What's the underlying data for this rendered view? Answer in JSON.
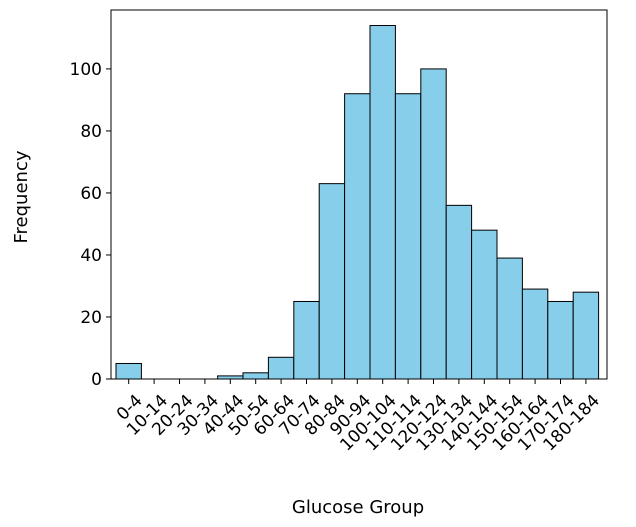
{
  "chart_data": {
    "type": "bar",
    "title": "",
    "xlabel": "Glucose Group",
    "ylabel": "Frequency",
    "categories": [
      "0-4",
      "10-14",
      "20-24",
      "30-34",
      "40-44",
      "50-54",
      "60-64",
      "70-74",
      "80-84",
      "90-94",
      "100-104",
      "110-114",
      "120-124",
      "130-134",
      "140-144",
      "150-154",
      "160-164",
      "170-174",
      "180-184"
    ],
    "values": [
      5,
      0,
      0,
      0,
      1,
      2,
      7,
      25,
      63,
      92,
      114,
      92,
      100,
      56,
      48,
      39,
      29,
      25,
      28
    ],
    "ylim": [
      0,
      119
    ],
    "yticks": [
      0,
      20,
      40,
      60,
      80,
      100
    ],
    "bar_color": "#87ceeb",
    "edge_color": "#000000",
    "grid": false,
    "legend": "none"
  }
}
